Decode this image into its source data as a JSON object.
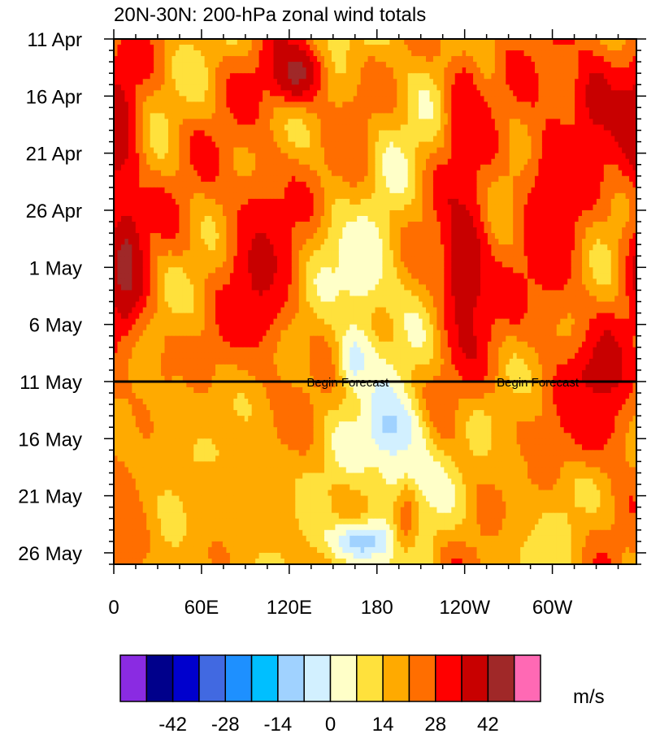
{
  "chart_data": {
    "type": "heatmap",
    "title": "20N-30N: 200-hPa zonal wind totals",
    "x_tick_labels": [
      "0",
      "60E",
      "120E",
      "180",
      "120W",
      "60W"
    ],
    "x_tick_degrees": [
      0,
      60,
      120,
      180,
      240,
      300
    ],
    "x_range_degrees": [
      0,
      357.5
    ],
    "y_tick_labels": [
      "11 Apr",
      "16 Apr",
      "21 Apr",
      "26 Apr",
      "1 May",
      "6 May",
      "11 May",
      "16 May",
      "21 May",
      "26 May"
    ],
    "y_tick_day": [
      0,
      5,
      10,
      15,
      20,
      25,
      30,
      35,
      40,
      45
    ],
    "y_range_day": [
      0,
      46
    ],
    "y_direction": "downward",
    "forecast_start_day": 30,
    "annotations": [
      {
        "text": "Begin Forecast",
        "lon": 160
      },
      {
        "text": "Begin Forecast",
        "lon": 290
      }
    ],
    "colorbar": {
      "units": "m/s",
      "tick_labels": [
        "-42",
        "-28",
        "-14",
        "0",
        "14",
        "28",
        "42"
      ],
      "tick_values": [
        -42,
        -28,
        -14,
        0,
        14,
        28,
        42
      ],
      "levels": [
        -49,
        -42,
        -35,
        -28,
        -21,
        -14,
        -7,
        0,
        7,
        14,
        21,
        28,
        35,
        42,
        49
      ],
      "colors": [
        "#8a2be2",
        "#00008b",
        "#0000cd",
        "#4169e1",
        "#1e90ff",
        "#00bfff",
        "#a0d2ff",
        "#d2f0ff",
        "#ffffc8",
        "#ffe13c",
        "#ffaa00",
        "#ff6e00",
        "#ff0000",
        "#c80000",
        "#a02828",
        "#ff69b4"
      ],
      "placement": "bottom"
    },
    "grid": false,
    "features": [
      {
        "lon": 0,
        "day": 8,
        "u": 42,
        "sx": 18,
        "sy": 6
      },
      {
        "lon": 8,
        "day": 20,
        "u": 44,
        "sx": 14,
        "sy": 7
      },
      {
        "lon": 40,
        "day": 30,
        "u": 24,
        "sx": 25,
        "sy": 5
      },
      {
        "lon": 100,
        "day": 20,
        "u": 36,
        "sx": 25,
        "sy": 10
      },
      {
        "lon": 125,
        "day": 3,
        "u": 44,
        "sx": 22,
        "sy": 3
      },
      {
        "lon": 165,
        "day": 10,
        "u": 26,
        "sx": 14,
        "sy": 6
      },
      {
        "lon": 170,
        "day": 20,
        "u": 2,
        "sx": 22,
        "sy": 5
      },
      {
        "lon": 165,
        "day": 28,
        "u": -3,
        "sx": 12,
        "sy": 3
      },
      {
        "lon": 190,
        "day": 34,
        "u": -10,
        "sx": 18,
        "sy": 3
      },
      {
        "lon": 200,
        "day": 38,
        "u": -5,
        "sx": 20,
        "sy": 4
      },
      {
        "lon": 170,
        "day": 44,
        "u": -12,
        "sx": 25,
        "sy": 2
      },
      {
        "lon": 200,
        "day": 42,
        "u": 24,
        "sx": 10,
        "sy": 4
      },
      {
        "lon": 240,
        "day": 20,
        "u": 42,
        "sx": 20,
        "sy": 8
      },
      {
        "lon": 240,
        "day": 6,
        "u": 34,
        "sx": 14,
        "sy": 6
      },
      {
        "lon": 300,
        "day": 15,
        "u": 34,
        "sx": 22,
        "sy": 12
      },
      {
        "lon": 330,
        "day": 5,
        "u": 38,
        "sx": 18,
        "sy": 5
      },
      {
        "lon": 335,
        "day": 30,
        "u": 42,
        "sx": 22,
        "sy": 4
      },
      {
        "lon": 330,
        "day": 34,
        "u": 32,
        "sx": 25,
        "sy": 4
      },
      {
        "lon": 60,
        "day": 38,
        "u": 14,
        "sx": 55,
        "sy": 8
      },
      {
        "lon": 290,
        "day": 44,
        "u": 10,
        "sx": 30,
        "sy": 4
      },
      {
        "lon": 275,
        "day": 38,
        "u": 20,
        "sx": 22,
        "sy": 6
      },
      {
        "lon": 105,
        "day": 42,
        "u": 16,
        "sx": 30,
        "sy": 5
      },
      {
        "lon": 10,
        "day": 44,
        "u": 28,
        "sx": 15,
        "sy": 4
      }
    ]
  }
}
